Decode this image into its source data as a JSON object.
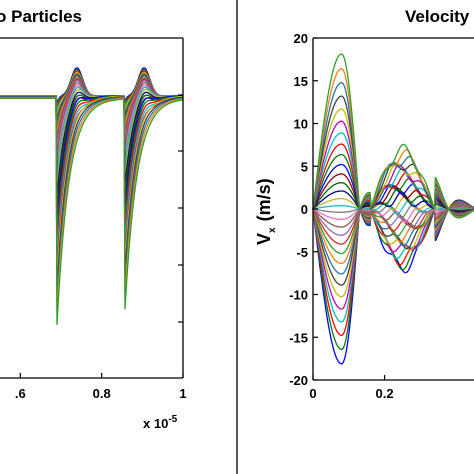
{
  "chart_data": [
    {
      "type": "line",
      "title": "o Particles",
      "xlabel": "",
      "ylabel": "",
      "x_tick_labels": [
        ".6",
        "0.8",
        "1"
      ],
      "x_multiplier_label": "x 10",
      "x_multiplier_exponent": "-5",
      "xlim": [
        0.55,
        1.0
      ],
      "y_tick_labels": [],
      "x_event_positions": [
        0.69,
        0.855
      ],
      "series_count": 30,
      "grid": false,
      "legend": "none"
    },
    {
      "type": "line",
      "title": "Velocity",
      "xlabel": "",
      "ylabel": "V",
      "ylabel_subscript": "x",
      "ylabel_units": "(m/s)",
      "xlim": [
        0,
        0.45
      ],
      "ylim": [
        -20,
        20
      ],
      "x_ticks": [
        0,
        0.2
      ],
      "x_tick_labels": [
        "0",
        "0.2"
      ],
      "y_ticks": [
        20,
        15,
        10,
        5,
        0,
        -5,
        -10,
        -15,
        -20
      ],
      "y_tick_labels": [
        "20",
        "15",
        "10",
        "5",
        "0",
        "-5",
        "-10",
        "-15",
        "-20"
      ],
      "series_count": 30,
      "grid": false,
      "legend": "none"
    }
  ]
}
